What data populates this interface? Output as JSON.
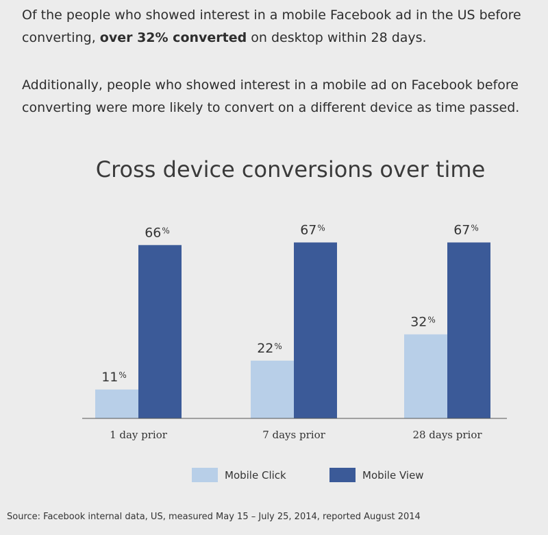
{
  "intro": {
    "p1_before": "Of the people who showed interest in a mobile Facebook ad in the US before converting, ",
    "p1_bold": "over 32% converted",
    "p1_after": " on desktop within 28 days.",
    "p2": "Additionally, people who showed interest in a mobile ad on Facebook before converting were more likely to convert on a different device as time passed."
  },
  "chart_data": {
    "type": "bar",
    "title": "Cross device conversions over time",
    "categories": [
      "1 day prior",
      "7 days prior",
      "28 days prior"
    ],
    "series": [
      {
        "name": "Mobile Click",
        "values": [
          11,
          22,
          32
        ],
        "color": "#b8cfe8"
      },
      {
        "name": "Mobile View",
        "values": [
          66,
          67,
          67
        ],
        "color": "#3b5a98"
      }
    ],
    "value_suffix": "%",
    "ylim": [
      0,
      70
    ],
    "grid": false,
    "legend": "bottom-center",
    "xlabel": "",
    "ylabel": ""
  },
  "source": "Source: Facebook internal data, US, measured May 15 – July 25, 2014, reported August 2014"
}
